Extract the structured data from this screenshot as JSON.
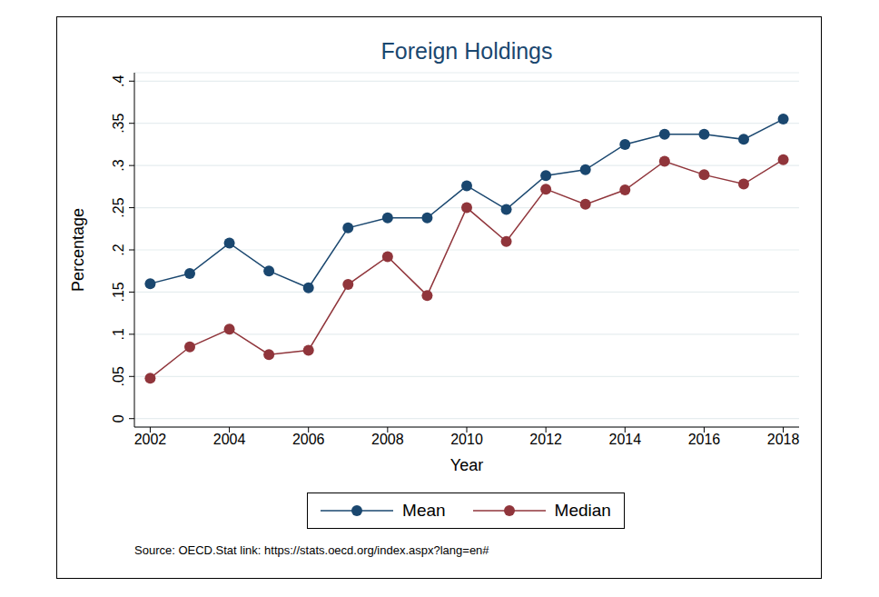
{
  "chart_data": {
    "type": "line",
    "title": "Foreign Holdings",
    "x_label": "Year",
    "y_label": "Percentage",
    "note": "Source: OECD.Stat link: https://stats.oecd.org/index.aspx?lang=en#",
    "x": [
      2002,
      2003,
      2004,
      2005,
      2006,
      2007,
      2008,
      2009,
      2010,
      2011,
      2012,
      2013,
      2014,
      2015,
      2016,
      2017,
      2018
    ],
    "series": [
      {
        "name": "Mean",
        "color": "#1a476f",
        "marker": "circle",
        "values": [
          0.16,
          0.172,
          0.208,
          0.175,
          0.155,
          0.226,
          0.238,
          0.238,
          0.276,
          0.248,
          0.288,
          0.295,
          0.325,
          0.337,
          0.337,
          0.331,
          0.355
        ]
      },
      {
        "name": "Median",
        "color": "#90353b",
        "marker": "circle",
        "values": [
          0.048,
          0.085,
          0.106,
          0.076,
          0.081,
          0.159,
          0.192,
          0.146,
          0.25,
          0.21,
          0.272,
          0.254,
          0.271,
          0.305,
          0.289,
          0.278,
          0.307
        ]
      }
    ],
    "xlim": [
      2001.6,
      2018.4
    ],
    "xticks": [
      2002,
      2004,
      2006,
      2008,
      2010,
      2012,
      2014,
      2016,
      2018
    ],
    "ylim": [
      -0.01,
      0.41
    ],
    "yticks": [
      0,
      {
        "value": 0.05,
        "label": ".05"
      },
      {
        "value": 0.1,
        "label": ".1"
      },
      {
        "value": 0.15,
        "label": ".15"
      },
      {
        "value": 0.2,
        "label": ".2"
      },
      {
        "value": 0.25,
        "label": ".25"
      },
      {
        "value": 0.3,
        "label": ".3"
      },
      {
        "value": 0.35,
        "label": ".35"
      },
      {
        "value": 0.4,
        "label": ".4"
      }
    ],
    "grid": true,
    "legend": "bottom"
  }
}
